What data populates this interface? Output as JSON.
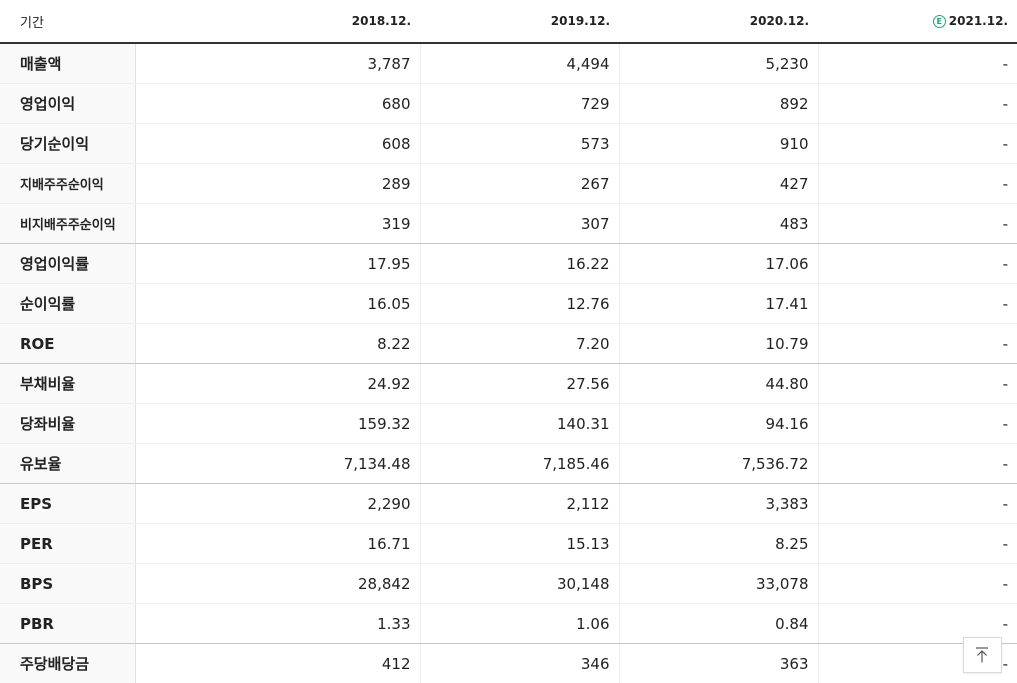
{
  "table": {
    "period_label": "기간",
    "estimate_icon": "estimate-circle-e-icon",
    "estimate_icon_text": "E",
    "columns": [
      "2018.12.",
      "2019.12.",
      "2020.12.",
      "2021.12."
    ],
    "rows": [
      {
        "label": "매출액",
        "values": [
          "3,787",
          "4,494",
          "5,230",
          "-"
        ]
      },
      {
        "label": "영업이익",
        "values": [
          "680",
          "729",
          "892",
          "-"
        ]
      },
      {
        "label": "당기순이익",
        "values": [
          "608",
          "573",
          "910",
          "-"
        ]
      },
      {
        "label": "지배주주순이익",
        "values": [
          "289",
          "267",
          "427",
          "-"
        ]
      },
      {
        "label": "비지배주주순이익",
        "values": [
          "319",
          "307",
          "483",
          "-"
        ]
      },
      {
        "label": "영업이익률",
        "values": [
          "17.95",
          "16.22",
          "17.06",
          "-"
        ]
      },
      {
        "label": "순이익률",
        "values": [
          "16.05",
          "12.76",
          "17.41",
          "-"
        ]
      },
      {
        "label": "ROE",
        "values": [
          "8.22",
          "7.20",
          "10.79",
          "-"
        ]
      },
      {
        "label": "부채비율",
        "values": [
          "24.92",
          "27.56",
          "44.80",
          "-"
        ]
      },
      {
        "label": "당좌비율",
        "values": [
          "159.32",
          "140.31",
          "94.16",
          "-"
        ]
      },
      {
        "label": "유보율",
        "values": [
          "7,134.48",
          "7,185.46",
          "7,536.72",
          "-"
        ]
      },
      {
        "label": "EPS",
        "values": [
          "2,290",
          "2,112",
          "3,383",
          "-"
        ]
      },
      {
        "label": "PER",
        "values": [
          "16.71",
          "15.13",
          "8.25",
          "-"
        ]
      },
      {
        "label": "BPS",
        "values": [
          "28,842",
          "30,148",
          "33,078",
          "-"
        ]
      },
      {
        "label": "PBR",
        "values": [
          "1.33",
          "1.06",
          "0.84",
          "-"
        ]
      },
      {
        "label": "주당배당금",
        "values": [
          "412",
          "346",
          "363",
          "-"
        ]
      }
    ]
  },
  "scroll_top_button": {
    "icon": "arrow-up-to-top-icon"
  },
  "colors": {
    "estimate_accent": "#1fa37d",
    "header_rule": "#333333",
    "label_bg": "#f9f9f9"
  }
}
